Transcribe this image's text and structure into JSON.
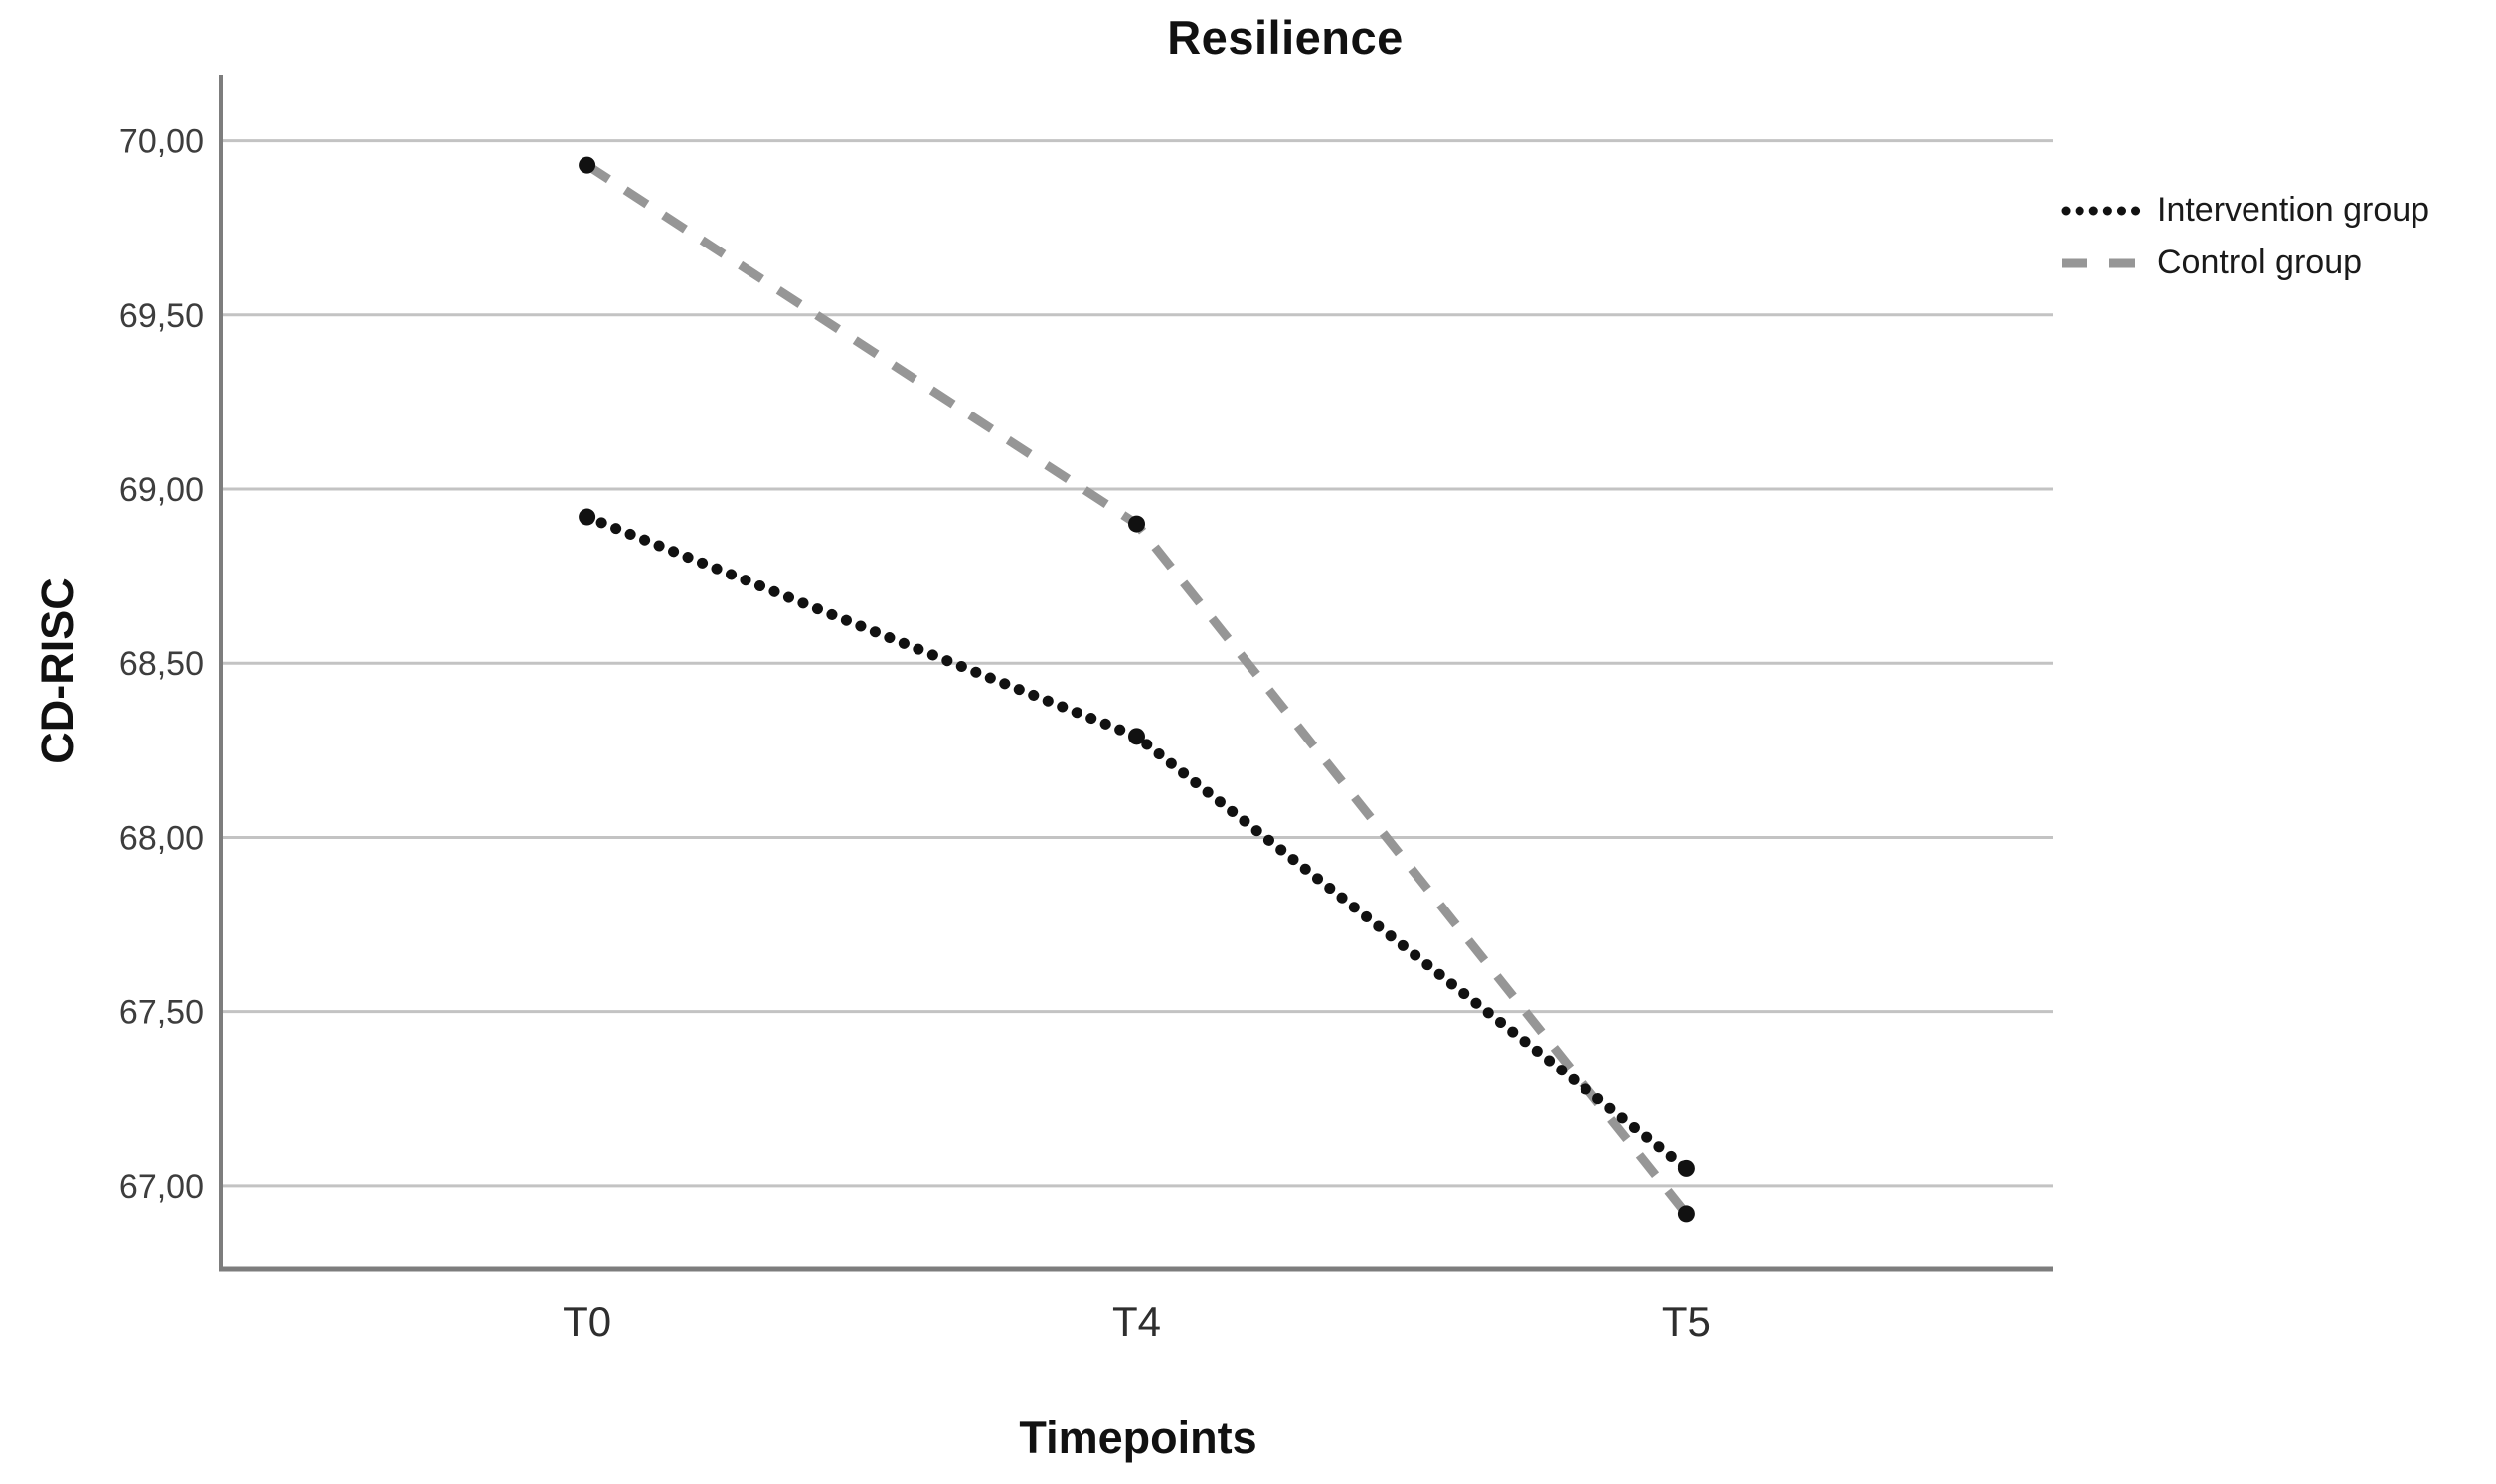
{
  "chart_data": {
    "type": "line",
    "title": "Resilience",
    "xlabel": "Timepoints",
    "ylabel": "CD-RISC",
    "categories": [
      "T0",
      "T4",
      "T5"
    ],
    "series": [
      {
        "name": "Intervention group",
        "style": "dotted",
        "color": "#111111",
        "values": [
          68.92,
          68.29,
          67.05
        ]
      },
      {
        "name": "Control group",
        "style": "dashed",
        "color": "#969696",
        "values": [
          69.93,
          68.9,
          66.92
        ]
      }
    ],
    "yticks": [
      67.0,
      67.5,
      68.0,
      68.5,
      69.0,
      69.5,
      70.0
    ],
    "ytick_labels": [
      "67,00",
      "67,50",
      "68,00",
      "68,50",
      "69,00",
      "69,50",
      "70,00"
    ],
    "ylim": [
      66.76,
      70.19
    ],
    "grid": "horizontal-only",
    "legend_position": "top-right",
    "marker": "filled-circle",
    "colors": {
      "marker": "#111111",
      "grid": "#c3c3c3",
      "axis": "#7d7d7d",
      "tick_text": "#3d3d3d",
      "title_text": "#111111"
    }
  }
}
